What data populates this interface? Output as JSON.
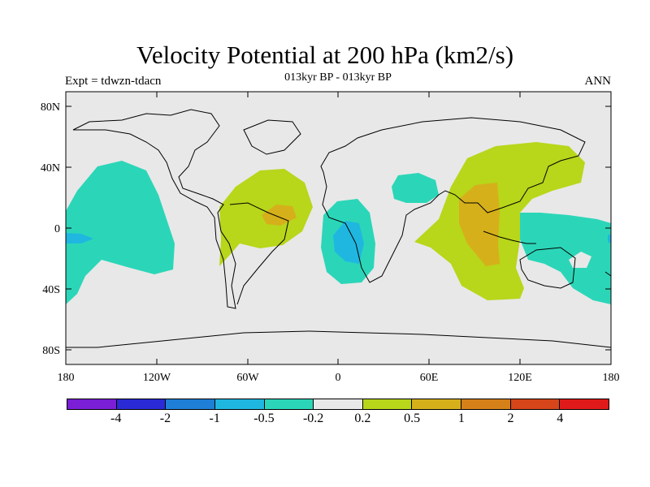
{
  "title": "Velocity Potential at 200 hPa (km2/s)",
  "expt": "Expt = tdwzn-tdacn",
  "subtitle": "013kyr BP - 013kyr BP",
  "season": "ANN",
  "lat_labels": [
    "80N",
    "40N",
    "0",
    "40S",
    "80S"
  ],
  "lon_labels": [
    "180",
    "120W",
    "60W",
    "0",
    "60E",
    "120E",
    "180"
  ],
  "colorbar": {
    "colors": [
      "#7a1fd6",
      "#2a2ad6",
      "#1f7fd6",
      "#1fb7e0",
      "#2bd6b8",
      "#e8e8e8",
      "#b8d61a",
      "#d6b01a",
      "#d6801a",
      "#d6461a",
      "#e01a1a"
    ],
    "labels": [
      "-4",
      "-2",
      "-1",
      "-0.5",
      "-0.2",
      "0.2",
      "0.5",
      "1",
      "2",
      "4"
    ]
  }
}
